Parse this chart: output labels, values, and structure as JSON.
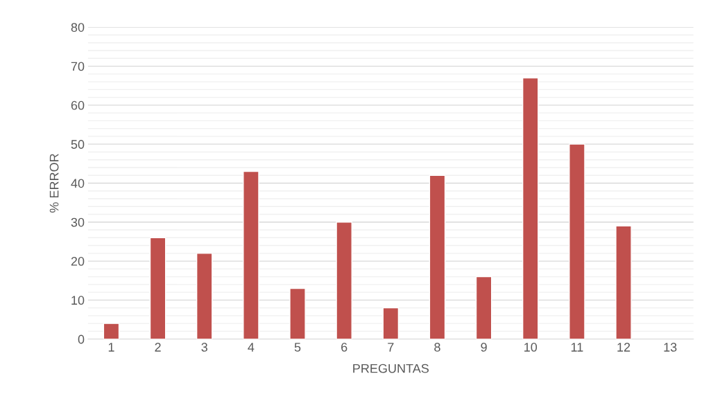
{
  "chart_data": {
    "type": "bar",
    "xlabel": "PREGUNTAS",
    "ylabel": "% ERROR",
    "categories": [
      "1",
      "2",
      "3",
      "4",
      "5",
      "6",
      "7",
      "8",
      "9",
      "10",
      "11",
      "12",
      "13"
    ],
    "values": [
      4,
      26,
      22,
      43,
      13,
      30,
      8,
      42,
      16,
      67,
      50,
      29,
      null
    ],
    "color": "#c0504d",
    "ylim": [
      0,
      80
    ],
    "yticks": [
      0,
      {
        "value": 2,
        "label": null
      },
      {
        "value": 4,
        "label": null
      },
      {
        "value": 6,
        "label": null
      },
      {
        "value": 8,
        "label": null
      },
      10,
      {
        "value": 12,
        "label": null
      },
      {
        "value": 14,
        "label": null
      },
      {
        "value": 16,
        "label": null
      },
      {
        "value": 18,
        "label": null
      },
      20,
      {
        "value": 22,
        "label": null
      },
      {
        "value": 24,
        "label": null
      },
      {
        "value": 26,
        "label": null
      },
      {
        "value": 28,
        "label": null
      },
      30,
      {
        "value": 32,
        "label": null
      },
      {
        "value": 34,
        "label": null
      },
      {
        "value": 36,
        "label": null
      },
      {
        "value": 38,
        "label": null
      },
      40,
      {
        "value": 42,
        "label": null
      },
      {
        "value": 44,
        "label": null
      },
      {
        "value": 46,
        "label": null
      },
      {
        "value": 48,
        "label": null
      },
      50,
      {
        "value": 52,
        "label": null
      },
      {
        "value": 54,
        "label": null
      },
      {
        "value": 56,
        "label": null
      },
      {
        "value": 58,
        "label": null
      },
      60,
      {
        "value": 62,
        "label": null
      },
      {
        "value": 64,
        "label": null
      },
      {
        "value": 66,
        "label": null
      },
      {
        "value": 68,
        "label": null
      },
      70,
      {
        "value": 72,
        "label": null
      },
      {
        "value": 74,
        "label": null
      },
      {
        "value": 76,
        "label": null
      },
      {
        "value": 78,
        "label": null
      },
      80
    ],
    "grid": "y"
  }
}
